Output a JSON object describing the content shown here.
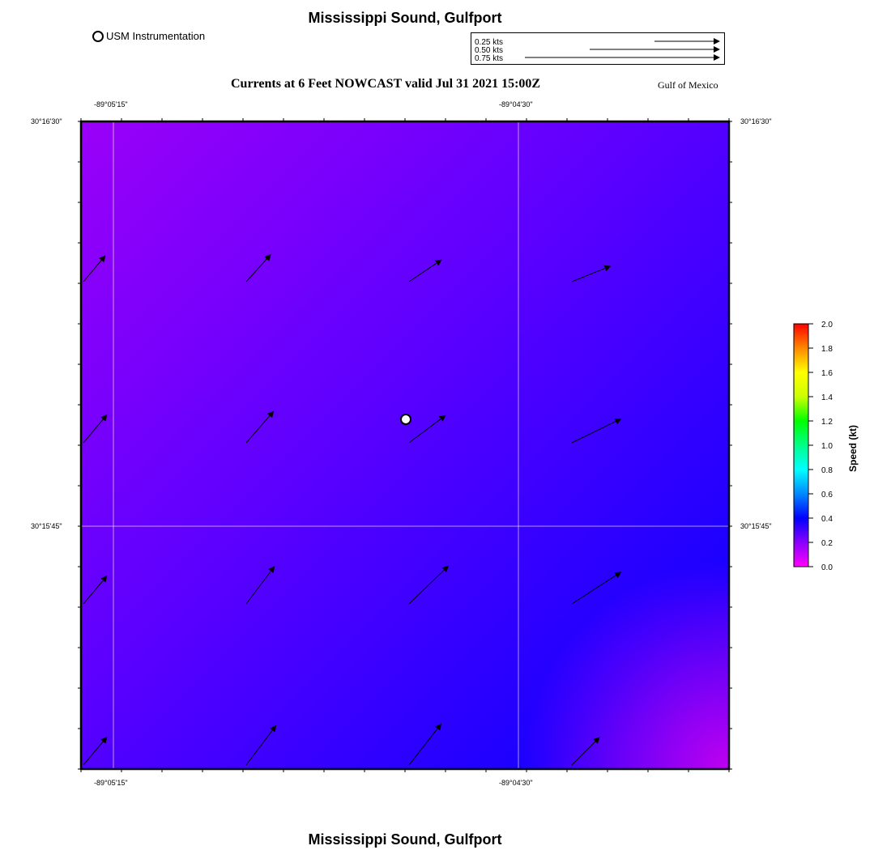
{
  "map": {
    "title": "Mississippi Sound, Gulfport",
    "bottom_title": "Mississippi Sound, Gulfport",
    "subtitle": "Currents at 6 Feet NOWCAST valid Jul 31 2021 15:00Z",
    "region": "Gulf of Mexico",
    "legend_marker_label": "USM Instrumentation",
    "scale_arrows": [
      {
        "label": "0.25 kts",
        "speed": 0.25
      },
      {
        "label": "0.50 kts",
        "speed": 0.5
      },
      {
        "label": "0.75 kts",
        "speed": 0.75
      }
    ],
    "lon_ticks": [
      "-89°05'15\"",
      "-89°04'30\""
    ],
    "lat_ticks": [
      "30°16'30\"",
      "30°15'45\""
    ],
    "station_marker": "USM Instrumentation"
  },
  "currents": [
    {
      "row": 0,
      "col": 0,
      "speed": 0.26,
      "direction_deg": 40
    },
    {
      "row": 0,
      "col": 1,
      "speed": 0.28,
      "direction_deg": 42
    },
    {
      "row": 0,
      "col": 2,
      "speed": 0.3,
      "direction_deg": 56
    },
    {
      "row": 0,
      "col": 3,
      "speed": 0.32,
      "direction_deg": 68
    },
    {
      "row": 1,
      "col": 0,
      "speed": 0.28,
      "direction_deg": 40
    },
    {
      "row": 1,
      "col": 1,
      "speed": 0.32,
      "direction_deg": 41
    },
    {
      "row": 1,
      "col": 2,
      "speed": 0.35,
      "direction_deg": 53
    },
    {
      "row": 1,
      "col": 3,
      "speed": 0.42,
      "direction_deg": 64
    },
    {
      "row": 2,
      "col": 0,
      "speed": 0.28,
      "direction_deg": 40
    },
    {
      "row": 2,
      "col": 1,
      "speed": 0.36,
      "direction_deg": 37
    },
    {
      "row": 2,
      "col": 2,
      "speed": 0.42,
      "direction_deg": 46
    },
    {
      "row": 2,
      "col": 3,
      "speed": 0.45,
      "direction_deg": 57
    },
    {
      "row": 3,
      "col": 0,
      "speed": 0.28,
      "direction_deg": 40
    },
    {
      "row": 3,
      "col": 1,
      "speed": 0.38,
      "direction_deg": 37
    },
    {
      "row": 3,
      "col": 2,
      "speed": 0.4,
      "direction_deg": 38
    },
    {
      "row": 3,
      "col": 3,
      "speed": 0.3,
      "direction_deg": 45
    }
  ],
  "colorbar": {
    "label": "Speed (kt)",
    "min": 0.0,
    "max": 2.0,
    "ticks": [
      "0.0",
      "0.2",
      "0.4",
      "0.6",
      "0.8",
      "1.0",
      "1.2",
      "1.4",
      "1.6",
      "1.8",
      "2.0"
    ],
    "colors": [
      "#ff00ff",
      "#8800ff",
      "#0000ff",
      "#0088ff",
      "#00ffff",
      "#00ff88",
      "#00ff00",
      "#ccff00",
      "#ffff00",
      "#ff8800",
      "#ff0000"
    ]
  },
  "field_colors": {
    "top_left": "#9a00f8",
    "mid": "#5a00ff",
    "bottom_center": "#1a00ff",
    "bottom_right": "#c000f0"
  },
  "arrow_color": "#000000"
}
